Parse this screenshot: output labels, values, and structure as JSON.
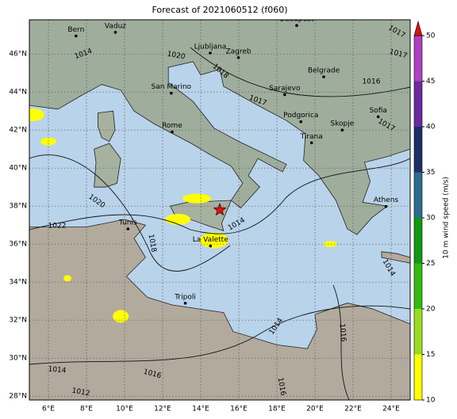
{
  "map": {
    "title": "Forecast of 2021060512 (f060)",
    "xticks": [
      {
        "value": 6,
        "label": "6°E"
      },
      {
        "value": 8,
        "label": "8°E"
      },
      {
        "value": 10,
        "label": "10°E"
      },
      {
        "value": 12,
        "label": "12°E"
      },
      {
        "value": 14,
        "label": "14°E"
      },
      {
        "value": 16,
        "label": "16°E"
      },
      {
        "value": 18,
        "label": "18°E"
      },
      {
        "value": 20,
        "label": "20°E"
      },
      {
        "value": 22,
        "label": "22°E"
      },
      {
        "value": 24,
        "label": "24°E"
      }
    ],
    "yticks": [
      {
        "value": 28,
        "label": "28°N"
      },
      {
        "value": 30,
        "label": "30°N"
      },
      {
        "value": 32,
        "label": "32°N"
      },
      {
        "value": 34,
        "label": "34°N"
      },
      {
        "value": 36,
        "label": "36°N"
      },
      {
        "value": 38,
        "label": "38°N"
      },
      {
        "value": 40,
        "label": "40°N"
      },
      {
        "value": 42,
        "label": "42°N"
      },
      {
        "value": 44,
        "label": "44°N"
      },
      {
        "value": 46,
        "label": "46°N"
      }
    ],
    "xlim": [
      5,
      25
    ],
    "ylim": [
      27.8,
      47.8
    ],
    "cities": [
      "Bern",
      "Vaduz",
      "Budapest",
      "Ljubljana",
      "Zagreb",
      "San Marino",
      "Belgrade",
      "Sarajevo",
      "Rome",
      "Podgorica",
      "Skopje",
      "Tirana",
      "Sofia",
      "Athens",
      "Tunis",
      "La Valette",
      "Tripoli"
    ],
    "isobar_labels": [
      "1017",
      "1014",
      "1020",
      "1018",
      "1017",
      "1017",
      "1016",
      "1017",
      "1020",
      "1022",
      "1018",
      "1014",
      "1014",
      "1014",
      "1016",
      "1014",
      "1016",
      "1016",
      "1012"
    ],
    "colorbar": {
      "label": "10 m wind speed (m/s)",
      "lim": [
        10,
        50
      ],
      "ticks": [
        10,
        15,
        20,
        25,
        30,
        35,
        40,
        45,
        50
      ],
      "colors": [
        "#ffff00",
        "#99dd22",
        "#33bb11",
        "#119911",
        "#2a6e8e",
        "#1d2f66",
        "#6a2a9e",
        "#b040c0"
      ],
      "extend_color": "#dd1111"
    }
  }
}
